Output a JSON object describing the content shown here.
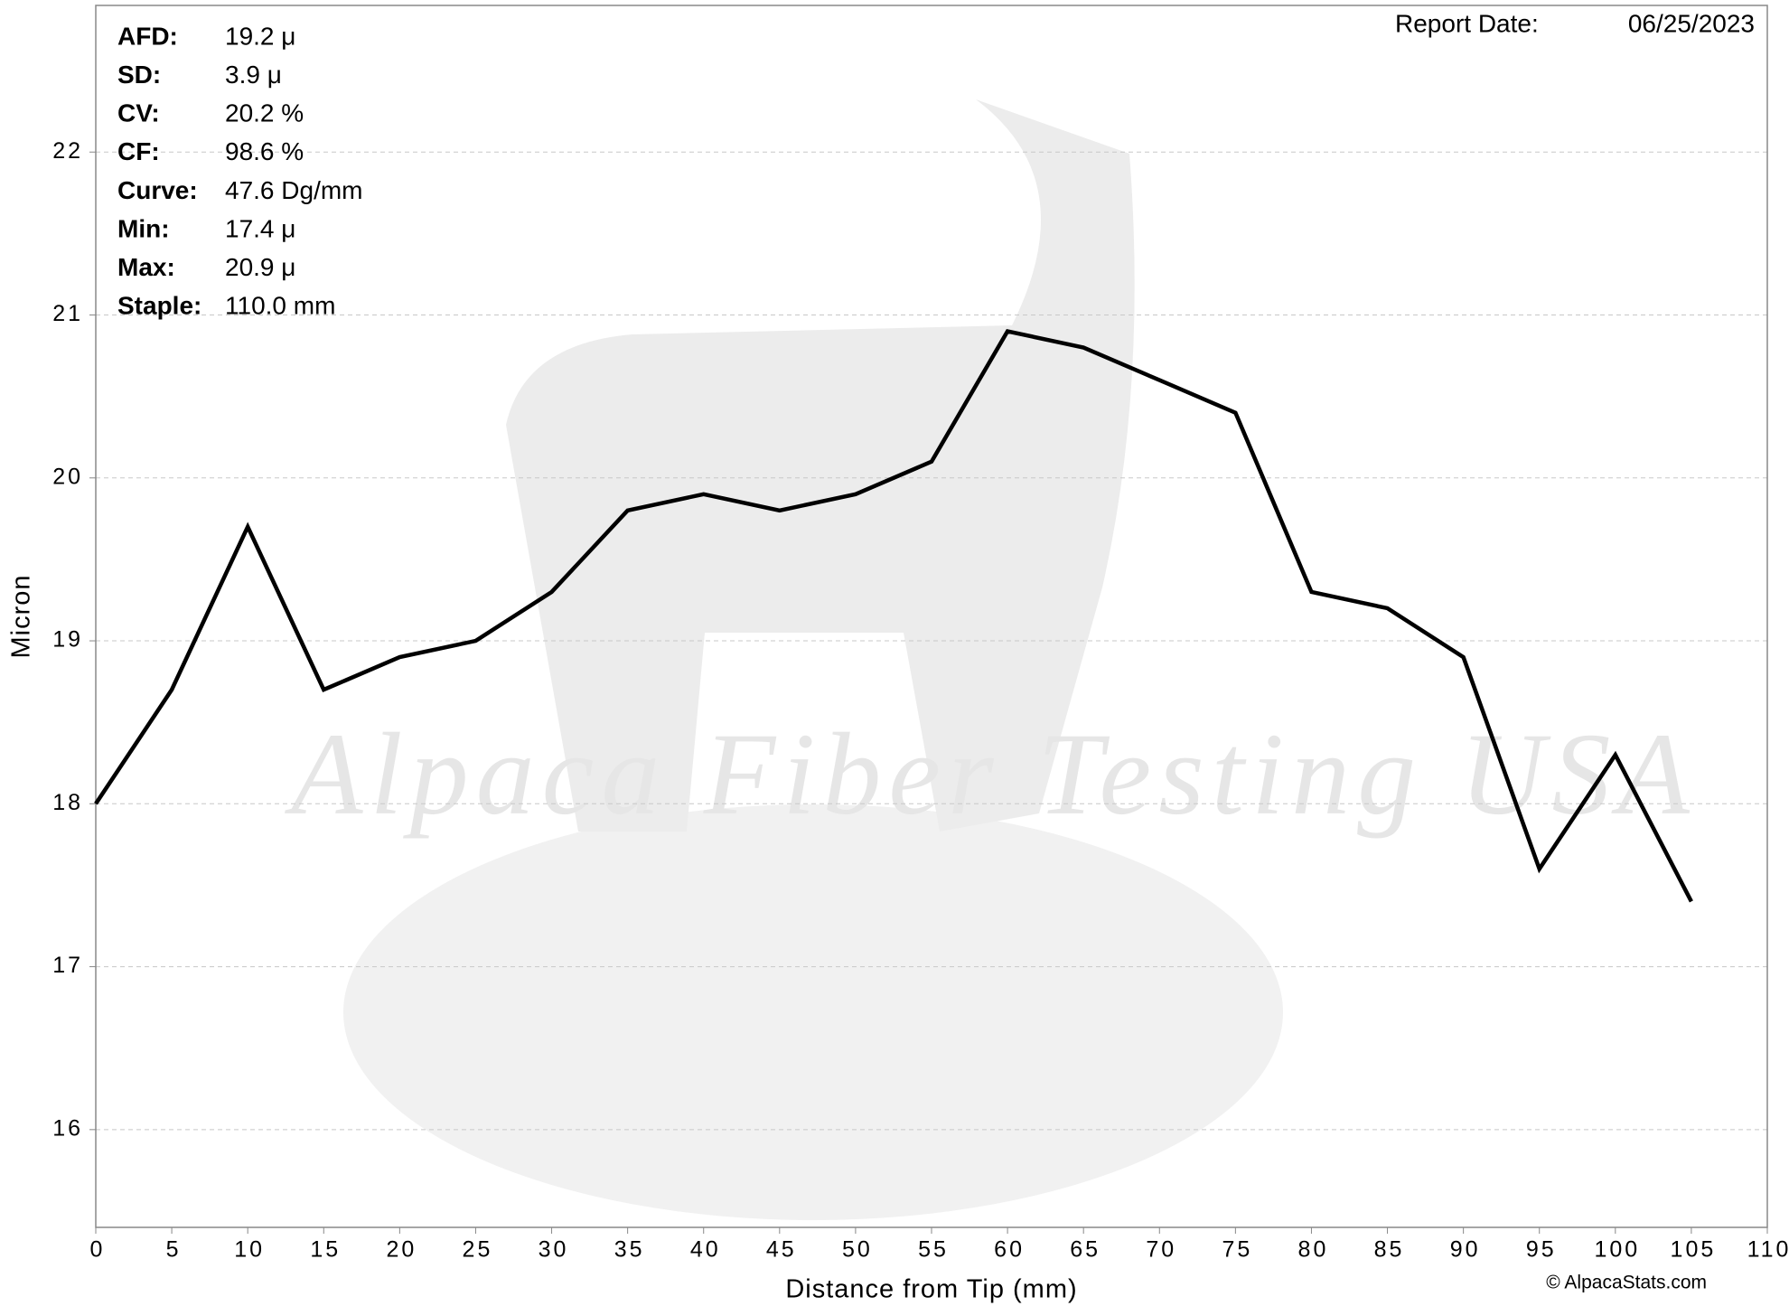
{
  "chart_data": {
    "type": "line",
    "x_label": "Distance from Tip (mm)",
    "y_label": "Micron",
    "x": [
      0,
      5,
      10,
      15,
      20,
      25,
      30,
      35,
      40,
      45,
      50,
      55,
      60,
      65,
      70,
      75,
      80,
      85,
      90,
      95,
      100,
      105
    ],
    "series": [
      {
        "name": "Micron",
        "color": "#000000",
        "values": [
          18.0,
          18.7,
          19.7,
          18.7,
          18.9,
          19.0,
          19.3,
          19.8,
          19.9,
          19.8,
          19.9,
          20.1,
          20.9,
          20.8,
          20.6,
          20.4,
          19.3,
          19.2,
          18.9,
          17.6,
          18.3,
          17.4
        ]
      }
    ],
    "xlim": [
      0,
      110
    ],
    "xticks": [
      0,
      5,
      10,
      15,
      20,
      25,
      30,
      35,
      40,
      45,
      50,
      55,
      60,
      65,
      70,
      75,
      80,
      85,
      90,
      95,
      100,
      105,
      110
    ],
    "ylim": [
      15.4,
      22.9
    ],
    "yticks": [
      16,
      17,
      18,
      19,
      20,
      21,
      22
    ],
    "grid": true,
    "stats": [
      {
        "label": "AFD:",
        "value": "19.2 μ"
      },
      {
        "label": "SD:",
        "value": "3.9 μ"
      },
      {
        "label": "CV:",
        "value": "20.2 %"
      },
      {
        "label": "CF:",
        "value": "98.6 %"
      },
      {
        "label": "Curve:",
        "value": "47.6 Dg/mm"
      },
      {
        "label": "Min:",
        "value": "17.4 μ"
      },
      {
        "label": "Max:",
        "value": "20.9 μ"
      },
      {
        "label": "Staple:",
        "value": "110.0 mm"
      }
    ],
    "report_date_label": "Report Date:",
    "report_date": "06/25/2023",
    "watermark": "Alpaca Fiber Testing USA",
    "copyright": "© AlpacaStats.com"
  }
}
